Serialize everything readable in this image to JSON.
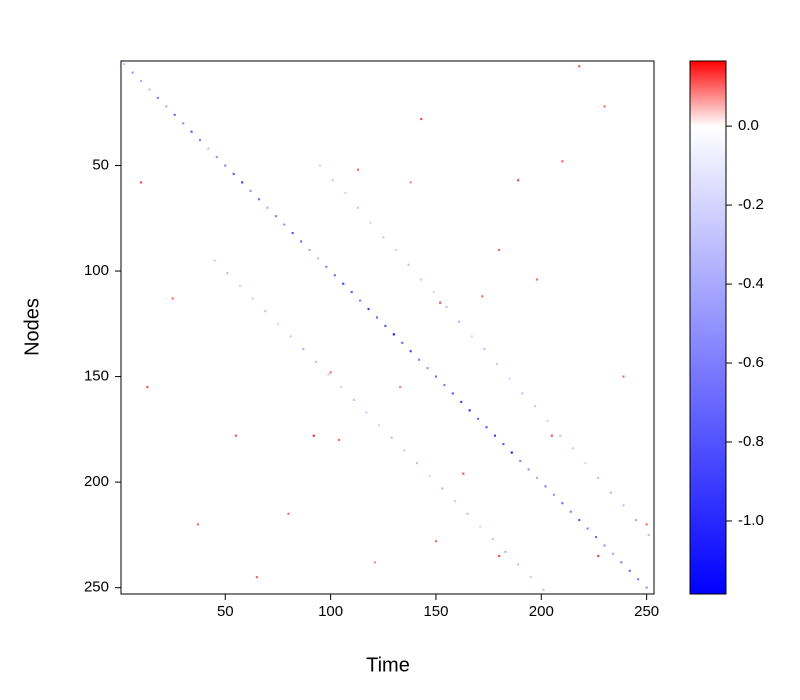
{
  "chart_data": {
    "type": "heatmap",
    "x_label": "Time",
    "y_label": "Nodes",
    "xlim": [
      0.5,
      253.5
    ],
    "ylim": [
      253,
      0.5
    ],
    "xticks": [
      50,
      100,
      150,
      200,
      250
    ],
    "yticks": [
      50,
      100,
      150,
      200,
      250
    ],
    "zlim": [
      -1.185,
      0.165
    ],
    "zticks": [
      {
        "value": 0,
        "label": "0.0"
      },
      {
        "value": -0.2,
        "label": "-0.2"
      },
      {
        "value": -0.4,
        "label": "-0.4"
      },
      {
        "value": -0.6,
        "label": "-0.6"
      },
      {
        "value": -0.8,
        "label": "-0.8"
      },
      {
        "value": -1.0,
        "label": "-1.0"
      }
    ],
    "colors": {
      "low": "#0000ff",
      "mid": "#ffffff",
      "high": "#ff0000"
    },
    "x": [
      2,
      6,
      10,
      14,
      18,
      22,
      26,
      30,
      34,
      38,
      42,
      46,
      50,
      54,
      58,
      62,
      66,
      70,
      74,
      78,
      82,
      86,
      90,
      94,
      98,
      102,
      106,
      110,
      114,
      118,
      122,
      126,
      130,
      134,
      138,
      142,
      146,
      150,
      154,
      158,
      162,
      166,
      170,
      174,
      178,
      182,
      186,
      190,
      194,
      198,
      202,
      206,
      210,
      214,
      218,
      222,
      226,
      230,
      234,
      238,
      242,
      246,
      250,
      95,
      101,
      107,
      113,
      119,
      125,
      131,
      137,
      143,
      149,
      155,
      161,
      167,
      173,
      179,
      185,
      191,
      197,
      203,
      209,
      215,
      221,
      227,
      233,
      239,
      245,
      251,
      45,
      51,
      57,
      63,
      69,
      75,
      81,
      87,
      93,
      99,
      105,
      111,
      117,
      123,
      129,
      135,
      141,
      147,
      153,
      159,
      165,
      171,
      177,
      183,
      189,
      195,
      201,
      218,
      230,
      143,
      113,
      138,
      189,
      210,
      198,
      172,
      152,
      25,
      13,
      133,
      100,
      92,
      55,
      104,
      163,
      250,
      227,
      150,
      80,
      37,
      180,
      10,
      239,
      205,
      180,
      65,
      121
    ],
    "y": [
      2,
      6,
      10,
      14,
      18,
      22,
      26,
      30,
      34,
      38,
      42,
      46,
      50,
      54,
      58,
      62,
      66,
      70,
      74,
      78,
      82,
      86,
      90,
      94,
      98,
      102,
      106,
      110,
      114,
      118,
      122,
      126,
      130,
      134,
      138,
      142,
      146,
      150,
      154,
      158,
      162,
      166,
      170,
      174,
      178,
      182,
      186,
      190,
      194,
      198,
      202,
      206,
      210,
      214,
      218,
      222,
      226,
      230,
      234,
      238,
      242,
      246,
      250,
      50,
      57,
      63,
      70,
      77,
      84,
      90,
      97,
      104,
      110,
      117,
      124,
      131,
      137,
      144,
      151,
      158,
      164,
      171,
      178,
      184,
      191,
      198,
      205,
      211,
      218,
      225,
      95,
      101,
      107,
      113,
      119,
      125,
      131,
      137,
      143,
      149,
      155,
      161,
      167,
      173,
      179,
      185,
      191,
      197,
      203,
      209,
      215,
      221,
      227,
      233,
      239,
      245,
      251,
      3,
      22,
      28,
      52,
      58,
      57,
      48,
      104,
      112,
      115,
      113,
      155,
      155,
      148,
      178,
      178,
      180,
      196,
      220,
      235,
      228,
      215,
      220,
      90,
      58,
      150,
      178,
      235,
      245,
      238
    ],
    "values": [
      -0.3,
      -0.5,
      -0.4,
      -0.3,
      -0.6,
      -0.4,
      -0.7,
      -0.5,
      -0.8,
      -0.6,
      -0.3,
      -0.5,
      -0.6,
      -0.8,
      -0.9,
      -0.5,
      -0.7,
      -0.4,
      -0.6,
      -0.5,
      -0.8,
      -0.7,
      -0.4,
      -0.3,
      -0.6,
      -0.7,
      -0.9,
      -0.8,
      -0.6,
      -0.9,
      -0.7,
      -0.8,
      -1.1,
      -0.7,
      -0.9,
      -0.6,
      -0.5,
      -0.7,
      -0.6,
      -0.8,
      -0.9,
      -1.0,
      -0.7,
      -0.8,
      -0.9,
      -0.8,
      -1.1,
      -0.6,
      -0.5,
      -0.4,
      -0.6,
      -0.5,
      -0.7,
      -0.6,
      -0.8,
      -0.6,
      -0.7,
      -0.5,
      -0.4,
      -0.6,
      -0.7,
      -0.6,
      -0.5,
      -0.2,
      -0.25,
      -0.2,
      -0.3,
      -0.2,
      -0.25,
      -0.2,
      -0.3,
      -0.25,
      -0.2,
      -0.3,
      -0.35,
      -0.2,
      -0.3,
      -0.25,
      -0.2,
      -0.3,
      -0.25,
      -0.2,
      -0.3,
      -0.25,
      -0.2,
      -0.3,
      -0.35,
      -0.3,
      -0.4,
      -0.3,
      -0.25,
      -0.3,
      -0.2,
      -0.25,
      -0.3,
      -0.2,
      -0.25,
      -0.35,
      -0.3,
      -0.25,
      -0.2,
      -0.3,
      -0.25,
      -0.2,
      -0.3,
      -0.25,
      -0.3,
      -0.2,
      -0.35,
      -0.25,
      -0.3,
      -0.2,
      -0.3,
      -0.4,
      -0.3,
      -0.25,
      -0.3,
      0.12,
      0.1,
      0.12,
      0.1,
      0.08,
      0.12,
      0.1,
      0.1,
      0.1,
      0.12,
      0.1,
      0.12,
      0.08,
      0.1,
      0.15,
      0.12,
      0.1,
      0.12,
      0.1,
      0.12,
      0.1,
      0.1,
      0.1,
      0.1,
      0.12,
      0.1,
      0.12,
      0.12,
      0.1,
      0.08
    ]
  }
}
